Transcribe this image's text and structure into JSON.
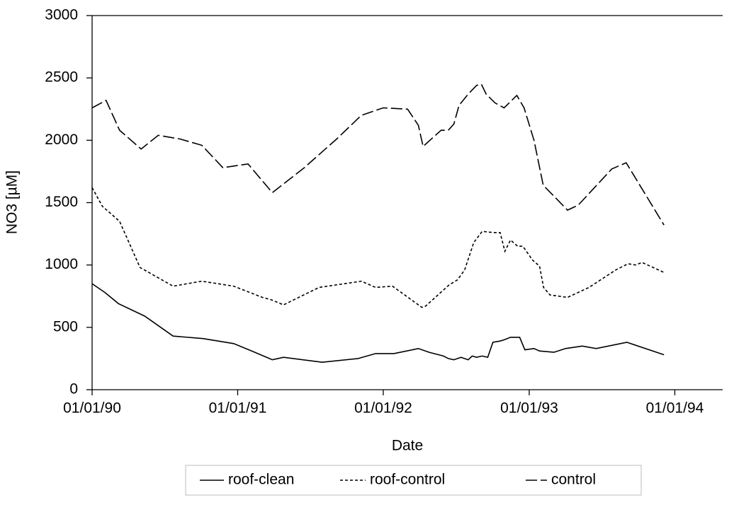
{
  "chart_data": {
    "type": "line",
    "y_label": "NO3 [µM]",
    "x_label": "Date",
    "ylim": [
      0,
      3000
    ],
    "yticks": [
      0,
      500,
      1000,
      1500,
      2000,
      2500,
      3000
    ],
    "xlim": [
      "1990-01-01",
      "1994-05-01"
    ],
    "xticks": [
      {
        "value": "1990-01-01",
        "label": "01/01/90"
      },
      {
        "value": "1991-01-01",
        "label": "01/01/91"
      },
      {
        "value": "1992-01-01",
        "label": "01/01/92"
      },
      {
        "value": "1993-01-01",
        "label": "01/01/93"
      },
      {
        "value": "1994-01-01",
        "label": "01/01/94"
      }
    ],
    "legend": "bottom",
    "series": [
      {
        "name": "roof-clean",
        "color": "#000000",
        "dash": "solid",
        "x": [
          "1990-01-01",
          "1990-02-02",
          "1990-03-08",
          "1990-05-13",
          "1990-07-23",
          "1990-10-06",
          "1990-12-22",
          "1991-02-05",
          "1991-03-29",
          "1991-04-26",
          "1991-08-01",
          "1991-10-30",
          "1991-12-13",
          "1992-01-28",
          "1992-03-29",
          "1992-04-25",
          "1992-05-31",
          "1992-06-12",
          "1992-06-26",
          "1992-07-14",
          "1992-08-01",
          "1992-08-11",
          "1992-08-22",
          "1992-09-05",
          "1992-09-19",
          "1992-10-02",
          "1992-10-20",
          "1992-10-30",
          "1992-11-15",
          "1992-12-08",
          "1992-12-21",
          "1993-01-13",
          "1993-01-27",
          "1993-03-04",
          "1993-04-02",
          "1993-05-14",
          "1993-06-18",
          "1993-09-03",
          "1993-12-05"
        ],
        "values": [
          850,
          780,
          690,
          590,
          430,
          410,
          370,
          310,
          240,
          260,
          220,
          250,
          290,
          290,
          330,
          300,
          270,
          250,
          240,
          260,
          240,
          270,
          260,
          270,
          260,
          380,
          390,
          400,
          420,
          420,
          320,
          330,
          310,
          300,
          330,
          350,
          330,
          380,
          280
        ]
      },
      {
        "name": "roof-control",
        "color": "#000000",
        "dash": "dashed",
        "x": [
          "1990-01-01",
          "1990-01-27",
          "1990-03-11",
          "1990-05-01",
          "1990-07-23",
          "1990-10-03",
          "1990-12-22",
          "1991-03-04",
          "1991-03-27",
          "1991-04-26",
          "1991-07-24",
          "1991-11-07",
          "1991-12-13",
          "1992-01-24",
          "1992-04-07",
          "1992-04-16",
          "1992-06-14",
          "1992-07-05",
          "1992-07-23",
          "1992-08-15",
          "1992-09-05",
          "1992-10-02",
          "1992-10-20",
          "1992-11-01",
          "1992-11-15",
          "1992-12-03",
          "1992-12-16",
          "1993-01-09",
          "1993-01-27",
          "1993-02-06",
          "1993-02-22",
          "1993-04-07",
          "1993-05-31",
          "1993-08-06",
          "1993-09-06",
          "1993-09-24",
          "1993-10-11",
          "1993-12-05"
        ],
        "values": [
          1620,
          1470,
          1350,
          980,
          830,
          870,
          830,
          740,
          720,
          680,
          820,
          870,
          820,
          830,
          660,
          670,
          840,
          880,
          960,
          1180,
          1270,
          1260,
          1260,
          1110,
          1200,
          1150,
          1150,
          1040,
          990,
          820,
          760,
          740,
          820,
          960,
          1010,
          1000,
          1020,
          940
        ]
      },
      {
        "name": "control",
        "color": "#000000",
        "dash": "long-dashed",
        "x": [
          "1990-01-01",
          "1990-02-05",
          "1990-03-11",
          "1990-05-04",
          "1990-06-16",
          "1990-08-10",
          "1990-10-03",
          "1990-11-25",
          "1991-01-27",
          "1991-03-29",
          "1991-06-17",
          "1991-09-06",
          "1991-11-07",
          "1992-01-01",
          "1992-03-02",
          "1992-03-29",
          "1992-04-10",
          "1992-05-04",
          "1992-05-25",
          "1992-06-12",
          "1992-06-26",
          "1992-07-09",
          "1992-08-01",
          "1992-08-22",
          "1992-09-03",
          "1992-09-15",
          "1992-10-07",
          "1992-10-30",
          "1992-12-01",
          "1992-12-19",
          "1993-01-13",
          "1993-02-05",
          "1993-04-07",
          "1993-05-04",
          "1993-07-27",
          "1993-09-01",
          "1993-12-05"
        ],
        "values": [
          2260,
          2320,
          2080,
          1930,
          2040,
          2010,
          1960,
          1780,
          1810,
          1580,
          1780,
          2010,
          2200,
          2260,
          2250,
          2120,
          1950,
          2020,
          2080,
          2080,
          2130,
          2280,
          2370,
          2440,
          2450,
          2370,
          2300,
          2260,
          2360,
          2260,
          2000,
          1640,
          1440,
          1480,
          1770,
          1820,
          1320
        ]
      }
    ]
  }
}
